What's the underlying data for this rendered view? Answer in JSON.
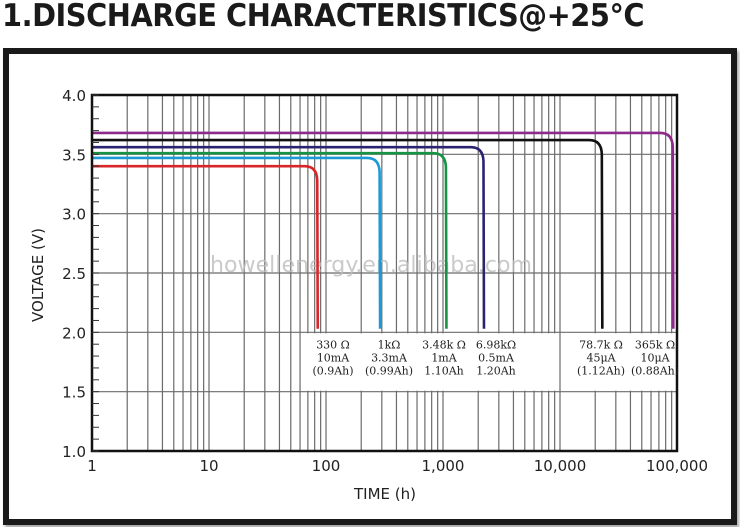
{
  "title": "1.DISCHARGE CHARACTERISTICS@+25°C",
  "watermark": "howellenergy.en.alibaba.com",
  "chart_data": {
    "type": "line",
    "title": "1.DISCHARGE CHARACTERISTICS@+25°C",
    "xlabel": "TIME (h)",
    "ylabel": "VOLTAGE (V)",
    "xscale": "log",
    "xlim": [
      1,
      100000
    ],
    "ylim": [
      1.0,
      4.0
    ],
    "grid": true,
    "x_ticks": [
      "1",
      "10",
      "100",
      "1,000",
      "10,000",
      "100,000"
    ],
    "y_ticks": [
      "4.0",
      "3.5",
      "3.0",
      "2.5",
      "2.0",
      "1.5",
      "1.0"
    ],
    "series": [
      {
        "name": "330 Ω",
        "current": "10mA",
        "capacity": "(0.9Ah)",
        "color": "#d9262a",
        "plateau_v": 3.4,
        "end_time_h": 85,
        "end_v": 2.03
      },
      {
        "name": "1kΩ",
        "current": "3.3mA",
        "capacity": "(0.99Ah)",
        "color": "#1c9ad6",
        "plateau_v": 3.47,
        "end_time_h": 290,
        "end_v": 2.03
      },
      {
        "name": "3.48k Ω",
        "current": "1mA",
        "capacity": "1.10Ah",
        "color": "#169443",
        "plateau_v": 3.51,
        "end_time_h": 1070,
        "end_v": 2.03
      },
      {
        "name": "6.98kΩ",
        "current": "0.5mA",
        "capacity": "1.20Ah",
        "color": "#2b2370",
        "plateau_v": 3.56,
        "end_time_h": 2240,
        "end_v": 2.03
      },
      {
        "name": "78.7k Ω",
        "current": "45μA",
        "capacity": "(1.12Ah)",
        "color": "#111111",
        "plateau_v": 3.62,
        "end_time_h": 23000,
        "end_v": 2.03
      },
      {
        "name": "365k Ω",
        "current": "10μA",
        "capacity": "(0.88Ah)",
        "color": "#8e2a8a",
        "plateau_v": 3.68,
        "end_time_h": 93000,
        "end_v": 2.03
      }
    ]
  }
}
